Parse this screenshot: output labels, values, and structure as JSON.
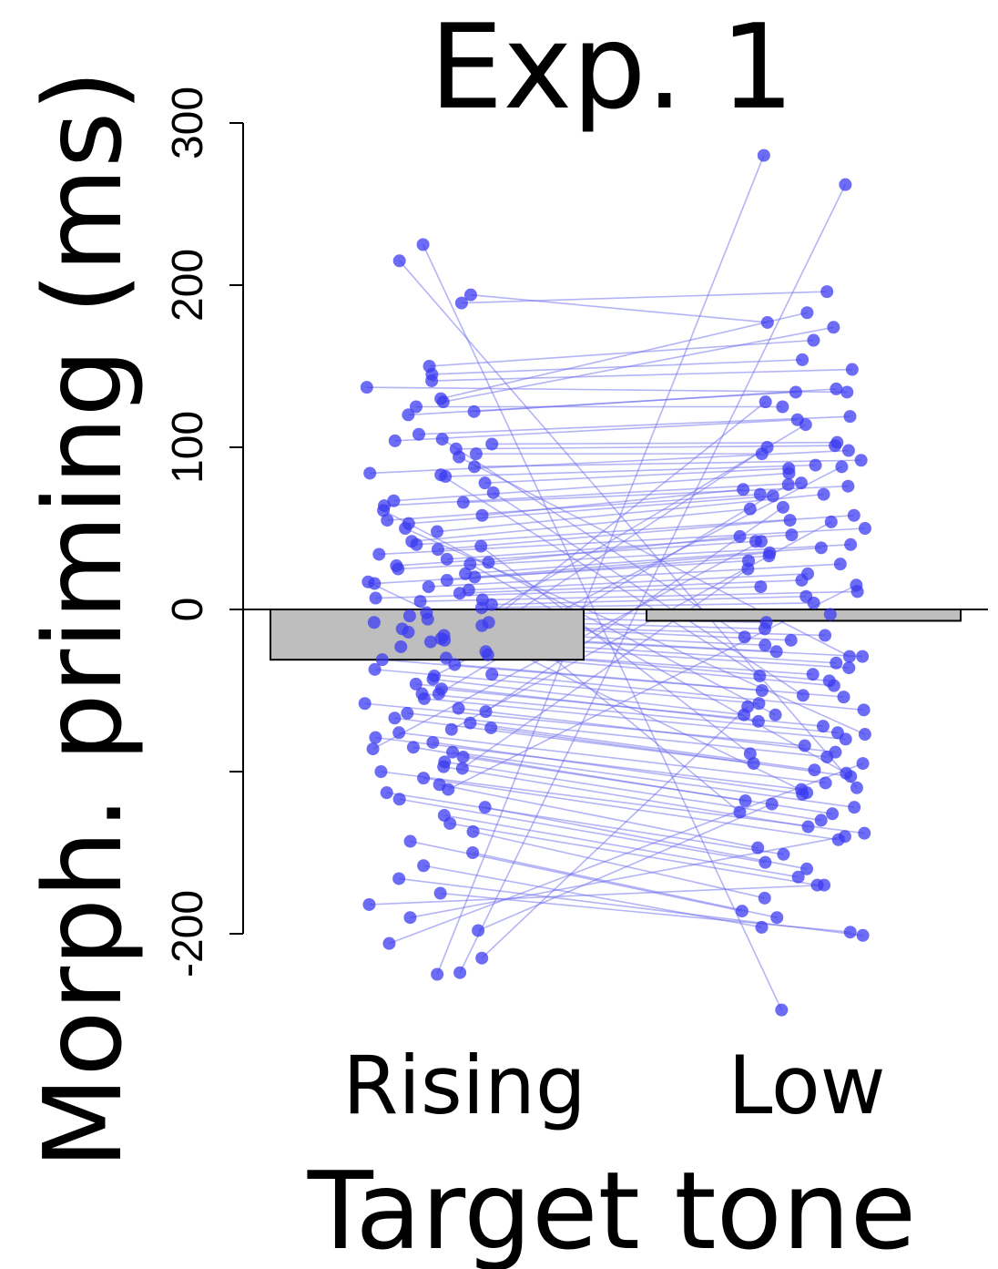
{
  "chart_data": {
    "type": "bar",
    "title": "Exp. 1",
    "xlabel": "Target tone",
    "ylabel": "Morph. priming (ms)",
    "categories": [
      "Rising",
      "Low"
    ],
    "values": [
      -31,
      -7
    ],
    "ylim": [
      -200,
      300
    ],
    "yticks": [
      -200,
      -100,
      0,
      100,
      200,
      300
    ],
    "ytick_labels": [
      "-200",
      "",
      "0",
      "100",
      "200",
      "300"
    ],
    "bar_color": "#bebebe",
    "point_color": "#3b3bf0",
    "line_color": "#6a6af0",
    "series": [
      {
        "type": "paired-points",
        "pairs": [
          [
            -224,
            262
          ],
          [
            -225,
            280
          ],
          [
            225,
            -247
          ],
          [
            215,
            -110
          ],
          [
            194,
            177
          ],
          [
            189,
            196
          ],
          [
            150,
            166
          ],
          [
            145,
            154
          ],
          [
            141,
            148
          ],
          [
            137,
            134
          ],
          [
            130,
            183
          ],
          [
            128,
            174
          ],
          [
            125,
            125
          ],
          [
            122,
            136
          ],
          [
            120,
            134
          ],
          [
            108,
            119
          ],
          [
            104,
            117
          ],
          [
            102,
            103
          ],
          [
            99,
            101
          ],
          [
            96,
            96
          ],
          [
            88,
            92
          ],
          [
            84,
            98
          ],
          [
            82,
            89
          ],
          [
            78,
            87
          ],
          [
            67,
            84
          ],
          [
            66,
            76
          ],
          [
            64,
            78
          ],
          [
            58,
            74
          ],
          [
            55,
            71
          ],
          [
            53,
            70
          ],
          [
            48,
            71
          ],
          [
            42,
            62
          ],
          [
            40,
            58
          ],
          [
            37,
            55
          ],
          [
            34,
            50
          ],
          [
            31,
            46
          ],
          [
            29,
            45
          ],
          [
            27,
            42
          ],
          [
            25,
            40
          ],
          [
            22,
            38
          ],
          [
            20,
            35
          ],
          [
            18,
            33
          ],
          [
            16,
            30
          ],
          [
            14,
            28
          ],
          [
            12,
            22
          ],
          [
            10,
            18
          ],
          [
            7,
            14
          ],
          [
            5,
            11
          ],
          [
            3,
            8
          ],
          [
            1,
            4
          ],
          [
            -2,
            -3
          ],
          [
            -4,
            -8
          ],
          [
            -6,
            -12
          ],
          [
            -8,
            -16
          ],
          [
            -10,
            -19
          ],
          [
            -12,
            -22
          ],
          [
            -14,
            -26
          ],
          [
            -16,
            -29
          ],
          [
            -18,
            -33
          ],
          [
            -20,
            -36
          ],
          [
            -23,
            -40
          ],
          [
            -26,
            -44
          ],
          [
            -28,
            -47
          ],
          [
            -31,
            -50
          ],
          [
            -34,
            -54
          ],
          [
            -37,
            -58
          ],
          [
            -40,
            -62
          ],
          [
            -43,
            -65
          ],
          [
            -46,
            -69
          ],
          [
            -49,
            -72
          ],
          [
            -52,
            -76
          ],
          [
            -55,
            -80
          ],
          [
            -58,
            -84
          ],
          [
            -61,
            -88
          ],
          [
            -64,
            -91
          ],
          [
            -67,
            -95
          ],
          [
            -70,
            -99
          ],
          [
            -73,
            -103
          ],
          [
            -76,
            -107
          ],
          [
            -79,
            -111
          ],
          [
            -82,
            -114
          ],
          [
            -85,
            -118
          ],
          [
            -88,
            -122
          ],
          [
            -91,
            -126
          ],
          [
            -94,
            -130
          ],
          [
            -97,
            -134
          ],
          [
            -100,
            -138
          ],
          [
            -104,
            -142
          ],
          [
            -108,
            -147
          ],
          [
            -113,
            -151
          ],
          [
            -117,
            -156
          ],
          [
            -122,
            -160
          ],
          [
            -127,
            -165
          ],
          [
            -132,
            -170
          ],
          [
            -137,
            -178
          ],
          [
            -143,
            -186
          ],
          [
            -150,
            -190
          ],
          [
            -158,
            -196
          ],
          [
            -166,
            -201
          ],
          [
            -175,
            -199
          ],
          [
            -182,
            -170
          ],
          [
            -190,
            -140
          ],
          [
            -198,
            -120
          ],
          [
            -206,
            -95
          ],
          [
            -215,
            -60
          ],
          [
            -111,
            15
          ],
          [
            -98,
            25
          ],
          [
            -86,
            42
          ],
          [
            -74,
            54
          ],
          [
            -63,
            63
          ],
          [
            -52,
            77
          ],
          [
            -41,
            88
          ],
          [
            -30,
            100
          ],
          [
            -19,
            114
          ],
          [
            -8,
            128
          ],
          [
            6,
            -125
          ],
          [
            17,
            -113
          ],
          [
            28,
            -101
          ],
          [
            39,
            -89
          ],
          [
            50,
            -77
          ],
          [
            61,
            -65
          ],
          [
            72,
            -53
          ],
          [
            83,
            -41
          ],
          [
            94,
            -29
          ],
          [
            105,
            -17
          ]
        ]
      }
    ]
  }
}
